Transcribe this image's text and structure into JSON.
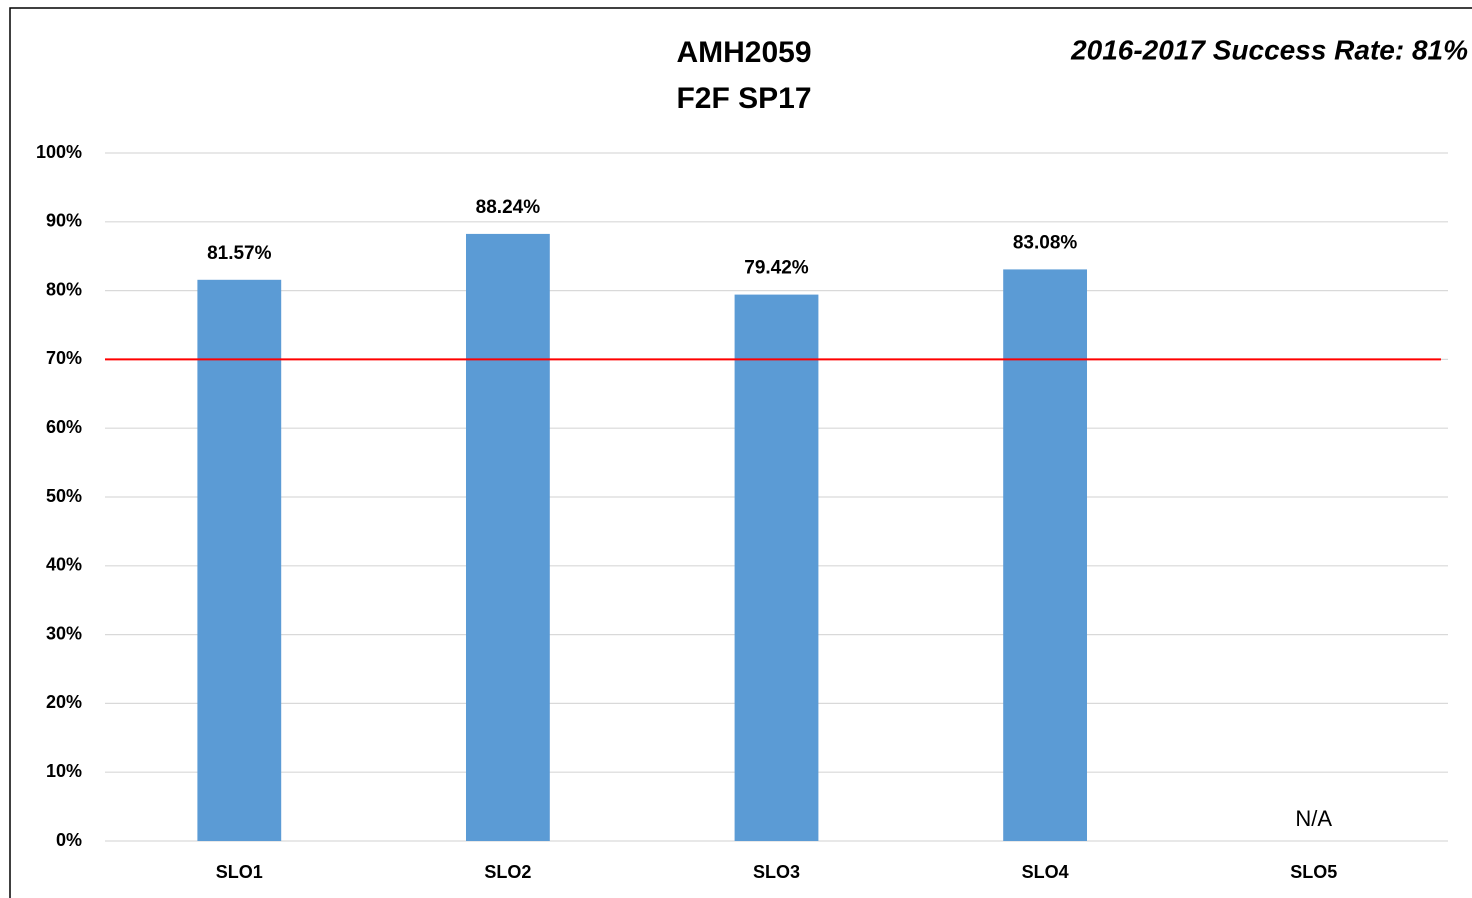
{
  "chart_data": {
    "type": "bar",
    "title": [
      "AMH2059",
      "F2F SP17"
    ],
    "annotations": [
      {
        "text": "2016-2017 Success Rate: 81%"
      },
      {
        "text": "N/A"
      }
    ],
    "categories": [
      "SLO1",
      "SLO2",
      "SLO3",
      "SLO4",
      "SLO5"
    ],
    "values": [
      81.57,
      88.24,
      79.42,
      83.08,
      null
    ],
    "value_labels": [
      "81.57%",
      "88.24%",
      "79.42%",
      "83.08%",
      null
    ],
    "color": "#5b9bd5",
    "ylim": [
      0,
      100
    ],
    "yticks": [
      {
        "value": 0,
        "label": "0%"
      },
      {
        "value": 10,
        "label": "10%"
      },
      {
        "value": 20,
        "label": "20%"
      },
      {
        "value": 30,
        "label": "30%"
      },
      {
        "value": 40,
        "label": "40%"
      },
      {
        "value": 50,
        "label": "50%"
      },
      {
        "value": 60,
        "label": "60%"
      },
      {
        "value": 70,
        "label": "70%"
      },
      {
        "value": 80,
        "label": "80%"
      },
      {
        "value": 90,
        "label": "90%"
      },
      {
        "value": 100,
        "label": "100%"
      }
    ],
    "grid": true,
    "reference_line": {
      "value": 70,
      "color": "#ff0000"
    }
  }
}
